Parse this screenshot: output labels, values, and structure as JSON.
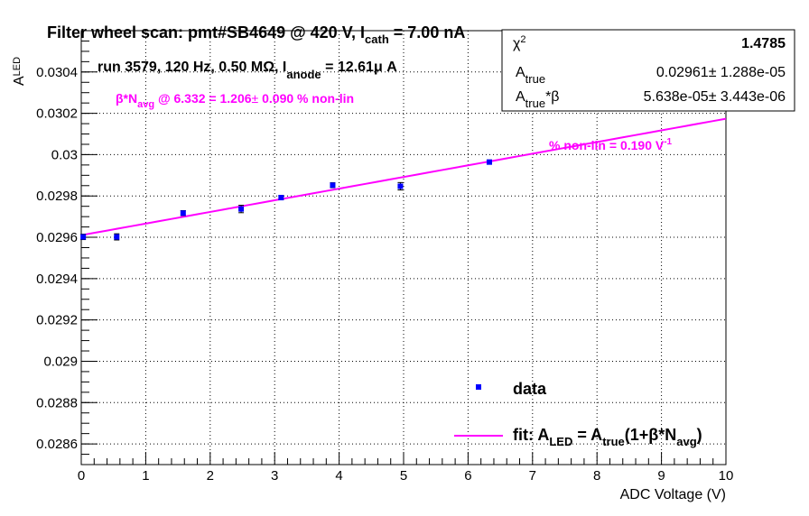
{
  "chart_data": {
    "type": "scatter",
    "title_main": "Filter wheel scan: pmt#SB4649 @   420 V, I",
    "title_sub": "cath",
    "title_tail": " = 7.00 nA",
    "xlabel": "ADC Voltage (V)",
    "ylabel_main": "A",
    "ylabel_sub": "LED",
    "xlim": [
      0,
      10
    ],
    "ylim": [
      0.0285,
      0.0306
    ],
    "xticks": [
      "0",
      "1",
      "2",
      "3",
      "4",
      "5",
      "6",
      "7",
      "8",
      "9",
      "10"
    ],
    "yticks": [
      "0.0286",
      "0.0288",
      "0.029",
      "0.0292",
      "0.0294",
      "0.0296",
      "0.0298",
      "0.03",
      "0.0302",
      "0.0304"
    ],
    "series": [
      {
        "name": "data",
        "color": "#0000ff",
        "x": [
          0.03,
          0.55,
          1.58,
          2.48,
          3.1,
          3.9,
          4.95,
          6.33
        ],
        "y": [
          0.029602,
          0.029602,
          0.029717,
          0.029737,
          0.029792,
          0.029852,
          0.029847,
          0.029964
        ],
        "yerr": [
          1.3e-05,
          1.5e-05,
          1.2e-05,
          1.8e-05,
          1e-05,
          1.2e-05,
          1.8e-05,
          1e-05
        ]
      }
    ],
    "fit": {
      "color": "#ff00ff",
      "a_true": 0.02961,
      "beta": 0.0019043,
      "x_range": [
        0,
        10
      ]
    },
    "annotations": {
      "run_pre": "run 3579, 120 Hz, 0.50 MΩ, I",
      "run_sub": "anode",
      "run_post": " = 12.61",
      "run_unit": "μ A",
      "beta_pre": "β*N",
      "beta_sub": "avg",
      "beta_post": " @ 6.332 = 1.206",
      "beta_pm": "±",
      "beta_tail": " 0.090 % non-lin",
      "nonlin_label": "% non-lin = 0.190 V",
      "nonlin_sup": "-1"
    },
    "stats": {
      "chi2_label": "χ",
      "chi2_sup": "2",
      "chi2_value": "1.4785",
      "atrue_label": "A",
      "atrue_sub": "true",
      "atrue_value": "0.02961",
      "atrue_pm": "±",
      "atrue_err": " 1.288e-05",
      "atb_label": "A",
      "atb_sub": "true",
      "atb_post": "*β",
      "atb_value": "5.638e-05",
      "atb_pm": "±",
      "atb_err": " 3.443e-06"
    },
    "legend": {
      "data_label": "data",
      "fit_pre": "fit: A",
      "fit_sub1": "LED",
      "fit_mid": " = A",
      "fit_sub2": "true",
      "fit_post": "(1+β*N",
      "fit_sub3": "avg",
      "fit_end": ")"
    },
    "grid": true,
    "legend_position": "bottom-right"
  }
}
